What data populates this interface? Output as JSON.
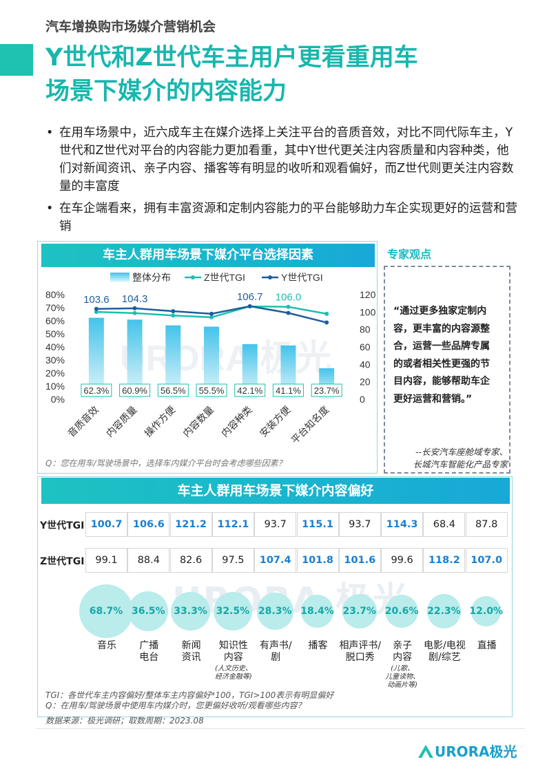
{
  "header": {
    "supertitle": "汽车增换购市场媒介营销机会",
    "title_line1": "Y世代和Z世代车主用户更看重用车",
    "title_line2": "场景下媒介的内容能力"
  },
  "bullets": [
    "在用车场景中，近六成车主在媒介选择上关注平台的音质音效，对比不同代际车主，Y世代和Z世代对平台的内容能力更加看重，其中Y世代更关注内容质量和内容种类，他们对新闻资讯、亲子内容、播客等有明显的收听和观看偏好，而Z世代则更关注内容数量的丰富度",
    "在车企端看来，拥有丰富资源和定制内容能力的平台能够助力车企实现更好的运营和营销"
  ],
  "chart_panel": {
    "title": "车主人群用车场景下媒介平台选择因素",
    "question": "Q：您在用车/驾驶场景中，选择车内媒介平台时会考虑哪些因素？"
  },
  "chart_data": {
    "type": "bar",
    "categories": [
      "音质音效",
      "内容质量",
      "操作方便",
      "内容数量",
      "内容种类",
      "安装方便",
      "平台知名度"
    ],
    "series": [
      {
        "name": "整体分布",
        "axis": "left",
        "values": [
          62.3,
          60.9,
          56.5,
          55.5,
          42.1,
          41.1,
          23.7
        ],
        "unit": "%",
        "color": "#5fc9ea"
      },
      {
        "name": "Z世代TGI",
        "axis": "right",
        "kind": "line",
        "values": [
          100.2,
          98.8,
          96.0,
          94.0,
          106.5,
          106.0,
          98.0
        ],
        "color": "#1bbfb0"
      },
      {
        "name": "Y世代TGI",
        "axis": "right",
        "kind": "line",
        "values": [
          103.6,
          104.3,
          101.0,
          98.0,
          106.7,
          99.0,
          88.0
        ],
        "color": "#1c5d9c"
      }
    ],
    "line_labels": [
      {
        "series": "Y世代TGI",
        "index": 0,
        "text": "103.6"
      },
      {
        "series": "Y世代TGI",
        "index": 1,
        "text": "104.3"
      },
      {
        "series": "Y世代TGI",
        "index": 4,
        "text": "106.7"
      },
      {
        "series": "Z世代TGI",
        "index": 5,
        "text": "106.0"
      }
    ],
    "bar_labels": [
      "62.3%",
      "60.9%",
      "56.5%",
      "55.5%",
      "42.1%",
      "41.1%",
      "23.7%"
    ],
    "y_left_ticks": [
      "80%",
      "70%",
      "60%",
      "50%",
      "40%",
      "30%",
      "20%",
      "10%",
      "0%"
    ],
    "y_left_range": [
      0,
      80
    ],
    "y_right_ticks": [
      "120",
      "100",
      "80",
      "60",
      "40",
      "20",
      "0"
    ],
    "y_right_range": [
      0,
      120
    ],
    "legend_placement": "top"
  },
  "expert": {
    "title": "专家观点",
    "quote_lines": [
      "“通过更多独家定制内",
      "容，更丰富的内容源整",
      "合，运营一些品牌专属",
      "的或者相关性更强的节",
      "目内容，能够帮助车企",
      "更好运营和营销。”"
    ],
    "source_lines": [
      "--长安汽车座舱域专家、",
      "长城汽车智能化产品专家"
    ]
  },
  "table_panel": {
    "title": "车主人群用车场景下媒介内容偏好",
    "row_labels": [
      "Y世代TGI",
      "Z世代TGI"
    ],
    "y_values": [
      "100.7",
      "106.6",
      "121.2",
      "112.1",
      "93.7",
      "115.1",
      "93.7",
      "114.3",
      "68.4",
      "87.8"
    ],
    "y_highlight": [
      true,
      true,
      true,
      true,
      false,
      true,
      false,
      true,
      false,
      false
    ],
    "z_values": [
      "99.1",
      "88.4",
      "82.6",
      "97.5",
      "107.4",
      "101.8",
      "101.6",
      "99.6",
      "118.2",
      "107.0"
    ],
    "z_highlight": [
      false,
      false,
      false,
      false,
      true,
      true,
      true,
      false,
      true,
      true
    ],
    "shares": [
      68.7,
      36.5,
      33.3,
      32.5,
      28.3,
      18.4,
      23.7,
      20.6,
      22.3,
      12.0
    ],
    "share_labels": [
      "68.7%",
      "36.5%",
      "33.3%",
      "32.5%",
      "28.3%",
      "18.4%",
      "23.7%",
      "20.6%",
      "22.3%",
      "12.0%"
    ],
    "categories": [
      [
        "音乐"
      ],
      [
        "广播",
        "电台"
      ],
      [
        "新闻",
        "资讯"
      ],
      [
        "知识性",
        "内容"
      ],
      [
        "有声书/",
        "剧"
      ],
      [
        "播客"
      ],
      [
        "相声评书/",
        "脱口秀"
      ],
      [
        "亲子",
        "内容"
      ],
      [
        "电影/电视",
        "剧/综艺"
      ],
      [
        "直播"
      ]
    ],
    "subnotes": {
      "3": [
        "(人文历史、",
        "经济金融等)"
      ],
      "7": [
        "(儿歌、",
        "儿童读物、",
        "动画片等)"
      ]
    },
    "notes": [
      "TGI：各世代车主内容偏好/整体车主内容偏好*100，TGI>100表示有明显偏好",
      "Q：在用车/驾驶场景中使用车内媒介时，您更偏好收听/观看哪些内容？"
    ]
  },
  "source": "数据来源：极光调研；取数周期：2023.08",
  "watermark": "URORA 极光",
  "footer_logo": "URORA极光",
  "colors": {
    "accent": "#1fc1b1",
    "title": "#17b7ad",
    "highlight": "#1a7fd0"
  }
}
